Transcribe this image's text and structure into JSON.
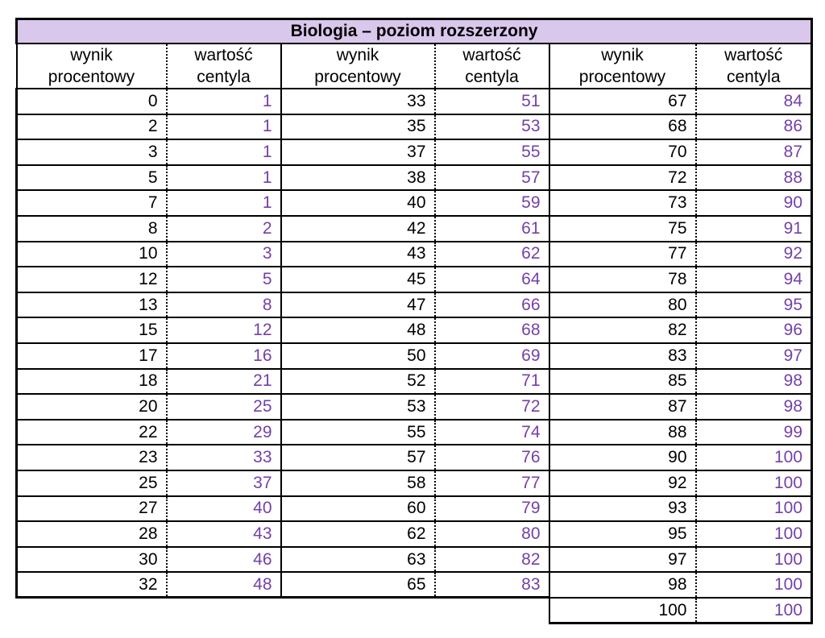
{
  "title": "Biologia – poziom rozszerzony",
  "columns": {
    "score": "wynik\nprocentowy",
    "percentile": "wartość\ncentyla"
  },
  "colors": {
    "title_background": "#d9c7ec",
    "percentile_text": "#7440a8",
    "score_text": "#000000",
    "border": "#000000"
  },
  "groups": [
    {
      "rows": [
        [
          0,
          1
        ],
        [
          2,
          1
        ],
        [
          3,
          1
        ],
        [
          5,
          1
        ],
        [
          7,
          1
        ],
        [
          8,
          2
        ],
        [
          10,
          3
        ],
        [
          12,
          5
        ],
        [
          13,
          8
        ],
        [
          15,
          12
        ],
        [
          17,
          16
        ],
        [
          18,
          21
        ],
        [
          20,
          25
        ],
        [
          22,
          29
        ],
        [
          23,
          33
        ],
        [
          25,
          37
        ],
        [
          27,
          40
        ],
        [
          28,
          43
        ],
        [
          30,
          46
        ],
        [
          32,
          48
        ]
      ]
    },
    {
      "rows": [
        [
          33,
          51
        ],
        [
          35,
          53
        ],
        [
          37,
          55
        ],
        [
          38,
          57
        ],
        [
          40,
          59
        ],
        [
          42,
          61
        ],
        [
          43,
          62
        ],
        [
          45,
          64
        ],
        [
          47,
          66
        ],
        [
          48,
          68
        ],
        [
          50,
          69
        ],
        [
          52,
          71
        ],
        [
          53,
          72
        ],
        [
          55,
          74
        ],
        [
          57,
          76
        ],
        [
          58,
          77
        ],
        [
          60,
          79
        ],
        [
          62,
          80
        ],
        [
          63,
          82
        ],
        [
          65,
          83
        ]
      ]
    },
    {
      "rows": [
        [
          67,
          84
        ],
        [
          68,
          86
        ],
        [
          70,
          87
        ],
        [
          72,
          88
        ],
        [
          73,
          90
        ],
        [
          75,
          91
        ],
        [
          77,
          92
        ],
        [
          78,
          94
        ],
        [
          80,
          95
        ],
        [
          82,
          96
        ],
        [
          83,
          97
        ],
        [
          85,
          98
        ],
        [
          87,
          98
        ],
        [
          88,
          99
        ],
        [
          90,
          100
        ],
        [
          92,
          100
        ],
        [
          93,
          100
        ],
        [
          95,
          100
        ],
        [
          97,
          100
        ],
        [
          98,
          100
        ],
        [
          100,
          100
        ]
      ]
    }
  ]
}
